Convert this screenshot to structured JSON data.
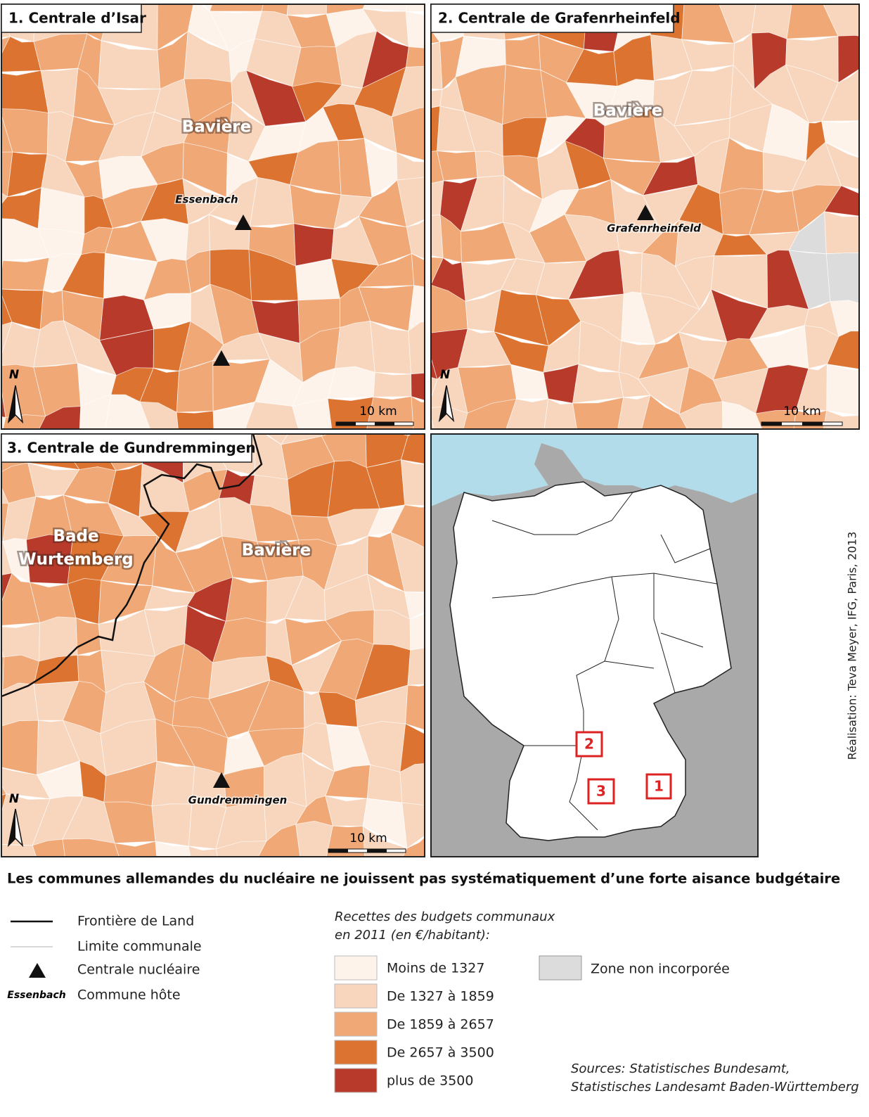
{
  "panels": [
    {
      "title": "1. Centrale d’Isar",
      "regions": [
        "Bavière"
      ],
      "host": "Essenbach",
      "north": "N",
      "scale": "10 km"
    },
    {
      "title": "2. Centrale de Grafenrheinfeld",
      "regions": [
        "Bavière"
      ],
      "host": "Grafenrheinfeld",
      "north": "N",
      "scale": "10 km"
    },
    {
      "title": "3. Centrale de Gundremmingen",
      "regions": [
        "Bade",
        "Wurtemberg",
        "Bavière"
      ],
      "host": "Gundremmingen",
      "north": "N",
      "scale": "10 km"
    }
  ],
  "overview": {
    "boxes": [
      "1",
      "2",
      "3"
    ]
  },
  "title": "Les communes allemandes du nucléaire ne jouissent pas systématiquement d’une forte aisance budgétaire",
  "legend": {
    "symbols": [
      "Frontière de Land",
      "Limite communale",
      "Centrale nucléaire",
      "Commune hôte"
    ],
    "host_sample": "Essenbach",
    "classes_title": [
      "Recettes des budgets communaux",
      "en 2011 (en €/habitant):"
    ],
    "classes": [
      {
        "label": "Moins de 1327",
        "color": "#fdf3ea"
      },
      {
        "label": "De 1327 à 1859",
        "color": "#f8d6bd"
      },
      {
        "label": "De 1859 à 2657",
        "color": "#f0a877"
      },
      {
        "label": "De 2657 à 3500",
        "color": "#dc7331"
      },
      {
        "label": "plus de 3500",
        "color": "#b83a2a"
      }
    ],
    "unincorporated": {
      "label": "Zone non incorporée",
      "color": "#dcdcdc"
    }
  },
  "sources": [
    "Sources: Statistisches Bundesamt,",
    "Statistisches Landesamt Baden-Württemberg"
  ],
  "credit": "Réalisation: Teva Meyer, IFG, Paris, 2013"
}
